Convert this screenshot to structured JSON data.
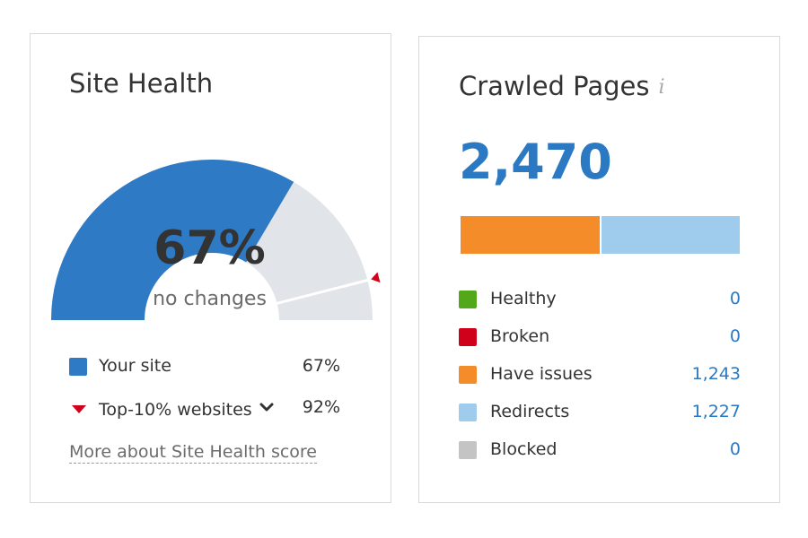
{
  "site_health": {
    "title": "Site Health",
    "score": 67,
    "score_label": "67%",
    "change_label": "no changes",
    "top10_score": 92,
    "legend": [
      {
        "label": "Your site",
        "value": "67%",
        "color": "#2f7ac4"
      },
      {
        "label": "Top-10% websites",
        "value": "92%",
        "color": "#d0021b"
      }
    ],
    "more_link": "More about Site Health score",
    "colors": {
      "filled": "#2f7ac4",
      "track": "#e1e4e8",
      "marker": "#d0021b"
    }
  },
  "crawled_pages": {
    "title": "Crawled Pages",
    "info_icon": "i",
    "total": "2,470",
    "statuses": [
      {
        "label": "Healthy",
        "value": "0",
        "count": 0,
        "color": "#53a819"
      },
      {
        "label": "Broken",
        "value": "0",
        "count": 0,
        "color": "#d0021b"
      },
      {
        "label": "Have issues",
        "value": "1,243",
        "count": 1243,
        "color": "#f58c2a"
      },
      {
        "label": "Redirects",
        "value": "1,227",
        "count": 1227,
        "color": "#9fcbed"
      },
      {
        "label": "Blocked",
        "value": "0",
        "count": 0,
        "color": "#c4c4c4"
      }
    ]
  }
}
